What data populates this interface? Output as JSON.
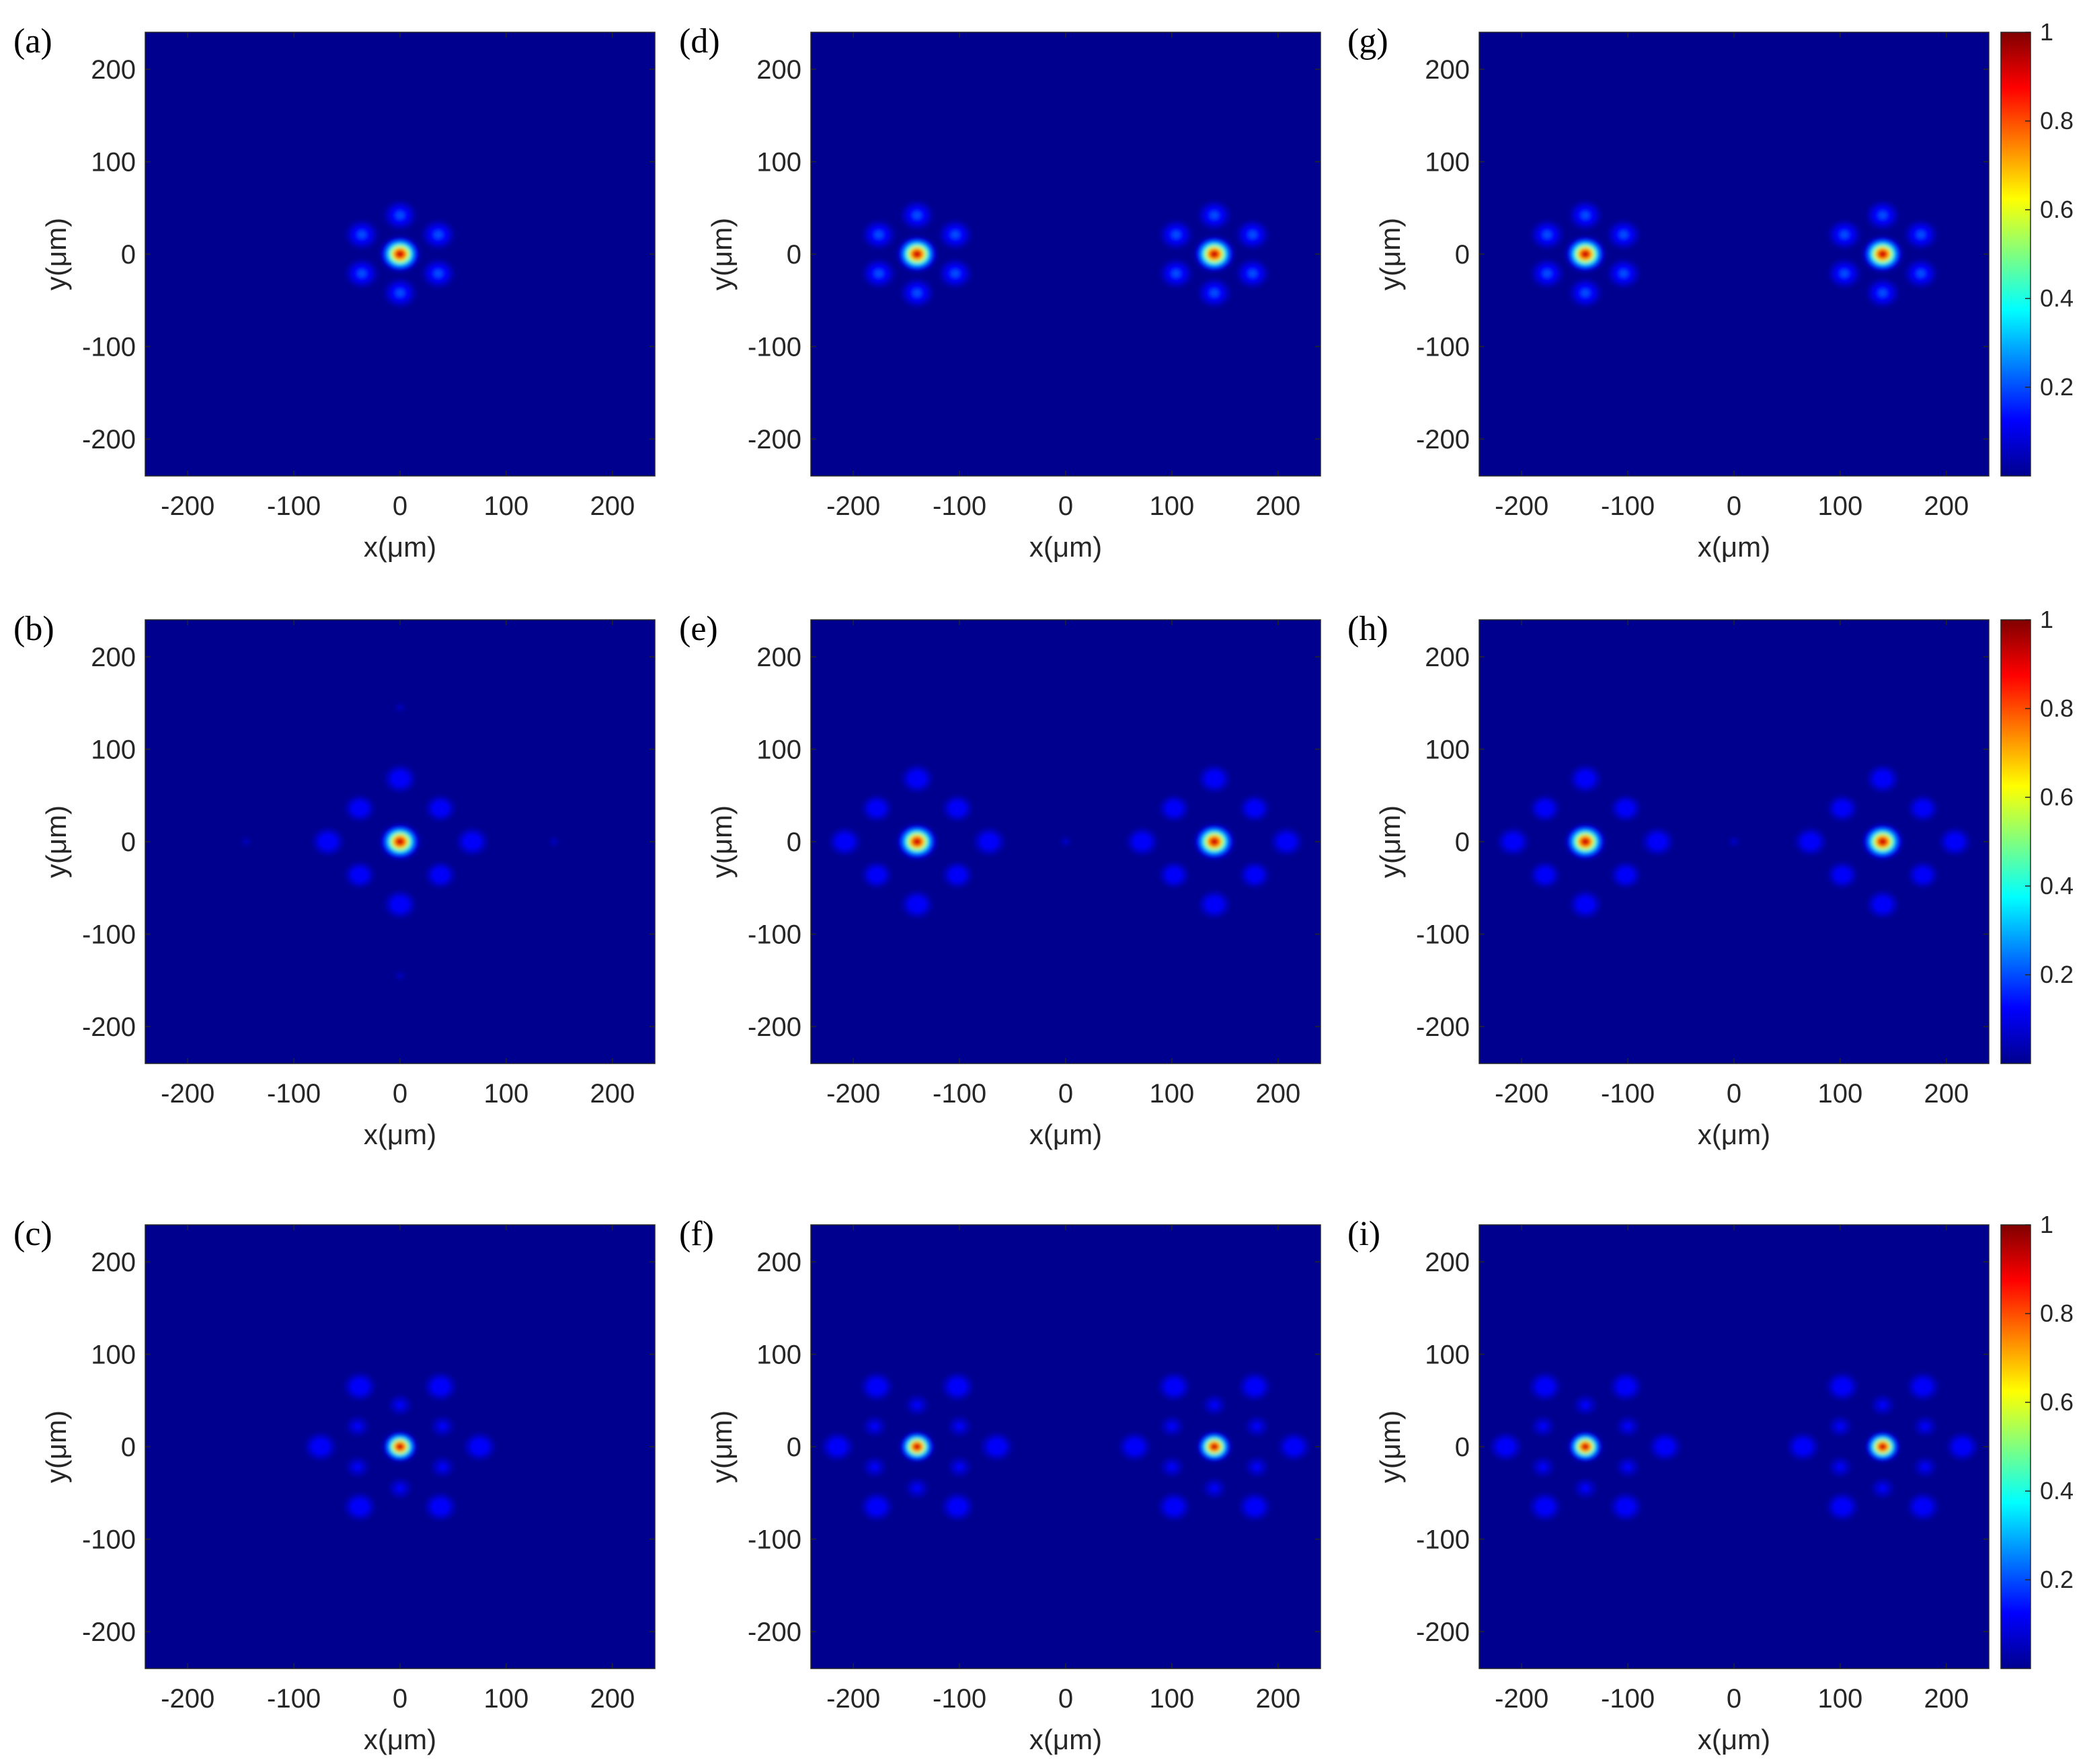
{
  "chart_data": {
    "type": "heatmap",
    "colormap": "jet",
    "background_color": "#00008f",
    "xlim": [
      -240,
      240
    ],
    "ylim": [
      -240,
      240
    ],
    "x_ticks": [
      "-200",
      "-100",
      "0",
      "100",
      "200"
    ],
    "y_ticks": [
      "200",
      "100",
      "0",
      "-100",
      "-200"
    ],
    "xlabel": "x(μm)",
    "ylabel": "y(μm)",
    "colorbar": {
      "range": [
        0,
        1
      ],
      "ticks": [
        "1",
        "0.8",
        "0.6",
        "0.4",
        "0.2"
      ],
      "rows": [
        0,
        1,
        2
      ]
    },
    "panels": [
      {
        "label": "(a)",
        "spots": [
          {
            "x": 0,
            "y": 0,
            "intensity": 1,
            "sigma": 7.5
          },
          {
            "x": 0,
            "y": 42,
            "intensity": 0.22,
            "sigma": 8.5
          },
          {
            "x": 0,
            "y": -42,
            "intensity": 0.22,
            "sigma": 8.5
          },
          {
            "x": 36,
            "y": 21,
            "intensity": 0.22,
            "sigma": 8.5
          },
          {
            "x": 36,
            "y": -21,
            "intensity": 0.22,
            "sigma": 8.5
          },
          {
            "x": -36,
            "y": 21,
            "intensity": 0.22,
            "sigma": 8.5
          },
          {
            "x": -36,
            "y": -21,
            "intensity": 0.22,
            "sigma": 8.5
          }
        ]
      },
      {
        "label": "(b)",
        "spots": [
          {
            "x": 0,
            "y": 0,
            "intensity": 1,
            "sigma": 7.5
          },
          {
            "x": 0,
            "y": 68,
            "intensity": 0.2,
            "sigma": 8.5
          },
          {
            "x": 0,
            "y": -68,
            "intensity": 0.2,
            "sigma": 8.5
          },
          {
            "x": 68,
            "y": 0,
            "intensity": 0.2,
            "sigma": 8.5
          },
          {
            "x": -68,
            "y": 0,
            "intensity": 0.2,
            "sigma": 8.5
          },
          {
            "x": 38,
            "y": 36,
            "intensity": 0.2,
            "sigma": 8
          },
          {
            "x": 38,
            "y": -36,
            "intensity": 0.2,
            "sigma": 8
          },
          {
            "x": -38,
            "y": 36,
            "intensity": 0.2,
            "sigma": 8
          },
          {
            "x": -38,
            "y": -36,
            "intensity": 0.2,
            "sigma": 8
          },
          {
            "x": 0,
            "y": 145,
            "intensity": 0.07,
            "sigma": 6
          },
          {
            "x": 0,
            "y": -145,
            "intensity": 0.07,
            "sigma": 6
          },
          {
            "x": 145,
            "y": 0,
            "intensity": 0.07,
            "sigma": 6
          },
          {
            "x": -145,
            "y": 0,
            "intensity": 0.07,
            "sigma": 6
          }
        ]
      },
      {
        "label": "(c)",
        "spots": [
          {
            "x": 0,
            "y": 0,
            "intensity": 1,
            "sigma": 6.5
          },
          {
            "x": 38,
            "y": 65,
            "intensity": 0.2,
            "sigma": 8.5
          },
          {
            "x": -38,
            "y": 65,
            "intensity": 0.2,
            "sigma": 8.5
          },
          {
            "x": 38,
            "y": -65,
            "intensity": 0.2,
            "sigma": 8.5
          },
          {
            "x": -38,
            "y": -65,
            "intensity": 0.2,
            "sigma": 8.5
          },
          {
            "x": 75,
            "y": 0,
            "intensity": 0.2,
            "sigma": 8.5
          },
          {
            "x": -75,
            "y": 0,
            "intensity": 0.2,
            "sigma": 8.5
          },
          {
            "x": 0,
            "y": 45,
            "intensity": 0.14,
            "sigma": 7
          },
          {
            "x": 0,
            "y": -45,
            "intensity": 0.14,
            "sigma": 7
          },
          {
            "x": 40,
            "y": 22,
            "intensity": 0.14,
            "sigma": 7
          },
          {
            "x": 40,
            "y": -22,
            "intensity": 0.14,
            "sigma": 7
          },
          {
            "x": -40,
            "y": 22,
            "intensity": 0.14,
            "sigma": 7
          },
          {
            "x": -40,
            "y": -22,
            "intensity": 0.14,
            "sigma": 7
          }
        ]
      },
      {
        "label": "(d)",
        "spots": [
          {
            "x": -140,
            "y": 0,
            "intensity": 1,
            "sigma": 7.5
          },
          {
            "x": -140,
            "y": 42,
            "intensity": 0.22,
            "sigma": 8.5
          },
          {
            "x": -140,
            "y": -42,
            "intensity": 0.22,
            "sigma": 8.5
          },
          {
            "x": -104,
            "y": 21,
            "intensity": 0.22,
            "sigma": 8.5
          },
          {
            "x": -104,
            "y": -21,
            "intensity": 0.22,
            "sigma": 8.5
          },
          {
            "x": -176,
            "y": 21,
            "intensity": 0.22,
            "sigma": 8.5
          },
          {
            "x": -176,
            "y": -21,
            "intensity": 0.22,
            "sigma": 8.5
          },
          {
            "x": 140,
            "y": 0,
            "intensity": 1,
            "sigma": 7.5
          },
          {
            "x": 140,
            "y": 42,
            "intensity": 0.22,
            "sigma": 8.5
          },
          {
            "x": 140,
            "y": -42,
            "intensity": 0.22,
            "sigma": 8.5
          },
          {
            "x": 176,
            "y": 21,
            "intensity": 0.22,
            "sigma": 8.5
          },
          {
            "x": 176,
            "y": -21,
            "intensity": 0.22,
            "sigma": 8.5
          },
          {
            "x": 104,
            "y": 21,
            "intensity": 0.22,
            "sigma": 8.5
          },
          {
            "x": 104,
            "y": -21,
            "intensity": 0.22,
            "sigma": 8.5
          }
        ]
      },
      {
        "label": "(e)",
        "spots": [
          {
            "x": -140,
            "y": 0,
            "intensity": 1,
            "sigma": 7.5
          },
          {
            "x": -140,
            "y": 68,
            "intensity": 0.2,
            "sigma": 8.5
          },
          {
            "x": -140,
            "y": -68,
            "intensity": 0.2,
            "sigma": 8.5
          },
          {
            "x": -72,
            "y": 0,
            "intensity": 0.2,
            "sigma": 8.5
          },
          {
            "x": -208,
            "y": 0,
            "intensity": 0.2,
            "sigma": 8.5
          },
          {
            "x": -102,
            "y": 36,
            "intensity": 0.2,
            "sigma": 8
          },
          {
            "x": -102,
            "y": -36,
            "intensity": 0.2,
            "sigma": 8
          },
          {
            "x": -178,
            "y": 36,
            "intensity": 0.2,
            "sigma": 8
          },
          {
            "x": -178,
            "y": -36,
            "intensity": 0.2,
            "sigma": 8
          },
          {
            "x": 140,
            "y": 0,
            "intensity": 1,
            "sigma": 7.5
          },
          {
            "x": 140,
            "y": 68,
            "intensity": 0.2,
            "sigma": 8.5
          },
          {
            "x": 140,
            "y": -68,
            "intensity": 0.2,
            "sigma": 8.5
          },
          {
            "x": 208,
            "y": 0,
            "intensity": 0.2,
            "sigma": 8.5
          },
          {
            "x": 72,
            "y": 0,
            "intensity": 0.2,
            "sigma": 8.5
          },
          {
            "x": 178,
            "y": 36,
            "intensity": 0.2,
            "sigma": 8
          },
          {
            "x": 178,
            "y": -36,
            "intensity": 0.2,
            "sigma": 8
          },
          {
            "x": 102,
            "y": 36,
            "intensity": 0.2,
            "sigma": 8
          },
          {
            "x": 102,
            "y": -36,
            "intensity": 0.2,
            "sigma": 8
          },
          {
            "x": 0,
            "y": 0,
            "intensity": 0.07,
            "sigma": 7
          }
        ]
      },
      {
        "label": "(f)",
        "spots": [
          {
            "x": -140,
            "y": 0,
            "intensity": 1,
            "sigma": 6.5
          },
          {
            "x": -102,
            "y": 65,
            "intensity": 0.2,
            "sigma": 8.5
          },
          {
            "x": -178,
            "y": 65,
            "intensity": 0.2,
            "sigma": 8.5
          },
          {
            "x": -102,
            "y": -65,
            "intensity": 0.2,
            "sigma": 8.5
          },
          {
            "x": -178,
            "y": -65,
            "intensity": 0.2,
            "sigma": 8.5
          },
          {
            "x": -65,
            "y": 0,
            "intensity": 0.2,
            "sigma": 8.5
          },
          {
            "x": -215,
            "y": 0,
            "intensity": 0.2,
            "sigma": 8.5
          },
          {
            "x": -140,
            "y": 45,
            "intensity": 0.14,
            "sigma": 7
          },
          {
            "x": -140,
            "y": -45,
            "intensity": 0.14,
            "sigma": 7
          },
          {
            "x": -100,
            "y": 22,
            "intensity": 0.14,
            "sigma": 7
          },
          {
            "x": -100,
            "y": -22,
            "intensity": 0.14,
            "sigma": 7
          },
          {
            "x": -180,
            "y": 22,
            "intensity": 0.14,
            "sigma": 7
          },
          {
            "x": -180,
            "y": -22,
            "intensity": 0.14,
            "sigma": 7
          },
          {
            "x": 140,
            "y": 0,
            "intensity": 1,
            "sigma": 6.5
          },
          {
            "x": 178,
            "y": 65,
            "intensity": 0.2,
            "sigma": 8.5
          },
          {
            "x": 102,
            "y": 65,
            "intensity": 0.2,
            "sigma": 8.5
          },
          {
            "x": 178,
            "y": -65,
            "intensity": 0.2,
            "sigma": 8.5
          },
          {
            "x": 102,
            "y": -65,
            "intensity": 0.2,
            "sigma": 8.5
          },
          {
            "x": 215,
            "y": 0,
            "intensity": 0.2,
            "sigma": 8.5
          },
          {
            "x": 65,
            "y": 0,
            "intensity": 0.2,
            "sigma": 8.5
          },
          {
            "x": 140,
            "y": 45,
            "intensity": 0.14,
            "sigma": 7
          },
          {
            "x": 140,
            "y": -45,
            "intensity": 0.14,
            "sigma": 7
          },
          {
            "x": 180,
            "y": 22,
            "intensity": 0.14,
            "sigma": 7
          },
          {
            "x": 180,
            "y": -22,
            "intensity": 0.14,
            "sigma": 7
          },
          {
            "x": 100,
            "y": 22,
            "intensity": 0.14,
            "sigma": 7
          },
          {
            "x": 100,
            "y": -22,
            "intensity": 0.14,
            "sigma": 7
          }
        ]
      },
      {
        "label": "(g)",
        "spots": [
          {
            "x": -140,
            "y": 0,
            "intensity": 1,
            "sigma": 7.5
          },
          {
            "x": -140,
            "y": 42,
            "intensity": 0.22,
            "sigma": 8.5
          },
          {
            "x": -140,
            "y": -42,
            "intensity": 0.22,
            "sigma": 8.5
          },
          {
            "x": -104,
            "y": 21,
            "intensity": 0.22,
            "sigma": 8.5
          },
          {
            "x": -104,
            "y": -21,
            "intensity": 0.22,
            "sigma": 8.5
          },
          {
            "x": -176,
            "y": 21,
            "intensity": 0.22,
            "sigma": 8.5
          },
          {
            "x": -176,
            "y": -21,
            "intensity": 0.22,
            "sigma": 8.5
          },
          {
            "x": 140,
            "y": 0,
            "intensity": 1,
            "sigma": 7.5
          },
          {
            "x": 140,
            "y": 42,
            "intensity": 0.22,
            "sigma": 8.5
          },
          {
            "x": 140,
            "y": -42,
            "intensity": 0.22,
            "sigma": 8.5
          },
          {
            "x": 176,
            "y": 21,
            "intensity": 0.22,
            "sigma": 8.5
          },
          {
            "x": 176,
            "y": -21,
            "intensity": 0.22,
            "sigma": 8.5
          },
          {
            "x": 104,
            "y": 21,
            "intensity": 0.22,
            "sigma": 8.5
          },
          {
            "x": 104,
            "y": -21,
            "intensity": 0.22,
            "sigma": 8.5
          }
        ]
      },
      {
        "label": "(h)",
        "spots": [
          {
            "x": -140,
            "y": 0,
            "intensity": 1,
            "sigma": 7.5
          },
          {
            "x": -140,
            "y": 68,
            "intensity": 0.2,
            "sigma": 8.5
          },
          {
            "x": -140,
            "y": -68,
            "intensity": 0.2,
            "sigma": 8.5
          },
          {
            "x": -72,
            "y": 0,
            "intensity": 0.2,
            "sigma": 8.5
          },
          {
            "x": -208,
            "y": 0,
            "intensity": 0.2,
            "sigma": 8.5
          },
          {
            "x": -102,
            "y": 36,
            "intensity": 0.2,
            "sigma": 8
          },
          {
            "x": -102,
            "y": -36,
            "intensity": 0.2,
            "sigma": 8
          },
          {
            "x": -178,
            "y": 36,
            "intensity": 0.2,
            "sigma": 8
          },
          {
            "x": -178,
            "y": -36,
            "intensity": 0.2,
            "sigma": 8
          },
          {
            "x": 140,
            "y": 0,
            "intensity": 1,
            "sigma": 7.5
          },
          {
            "x": 140,
            "y": 68,
            "intensity": 0.2,
            "sigma": 8.5
          },
          {
            "x": 140,
            "y": -68,
            "intensity": 0.2,
            "sigma": 8.5
          },
          {
            "x": 208,
            "y": 0,
            "intensity": 0.2,
            "sigma": 8.5
          },
          {
            "x": 72,
            "y": 0,
            "intensity": 0.2,
            "sigma": 8.5
          },
          {
            "x": 178,
            "y": 36,
            "intensity": 0.2,
            "sigma": 8
          },
          {
            "x": 178,
            "y": -36,
            "intensity": 0.2,
            "sigma": 8
          },
          {
            "x": 102,
            "y": 36,
            "intensity": 0.2,
            "sigma": 8
          },
          {
            "x": 102,
            "y": -36,
            "intensity": 0.2,
            "sigma": 8
          },
          {
            "x": 0,
            "y": 0,
            "intensity": 0.07,
            "sigma": 7
          }
        ]
      },
      {
        "label": "(i)",
        "spots": [
          {
            "x": -140,
            "y": 0,
            "intensity": 1,
            "sigma": 6.5
          },
          {
            "x": -102,
            "y": 65,
            "intensity": 0.2,
            "sigma": 8.5
          },
          {
            "x": -178,
            "y": 65,
            "intensity": 0.2,
            "sigma": 8.5
          },
          {
            "x": -102,
            "y": -65,
            "intensity": 0.2,
            "sigma": 8.5
          },
          {
            "x": -178,
            "y": -65,
            "intensity": 0.2,
            "sigma": 8.5
          },
          {
            "x": -65,
            "y": 0,
            "intensity": 0.2,
            "sigma": 8.5
          },
          {
            "x": -215,
            "y": 0,
            "intensity": 0.2,
            "sigma": 8.5
          },
          {
            "x": -140,
            "y": 45,
            "intensity": 0.14,
            "sigma": 7
          },
          {
            "x": -140,
            "y": -45,
            "intensity": 0.14,
            "sigma": 7
          },
          {
            "x": -100,
            "y": 22,
            "intensity": 0.14,
            "sigma": 7
          },
          {
            "x": -100,
            "y": -22,
            "intensity": 0.14,
            "sigma": 7
          },
          {
            "x": -180,
            "y": 22,
            "intensity": 0.14,
            "sigma": 7
          },
          {
            "x": -180,
            "y": -22,
            "intensity": 0.14,
            "sigma": 7
          },
          {
            "x": 140,
            "y": 0,
            "intensity": 1,
            "sigma": 6.5
          },
          {
            "x": 178,
            "y": 65,
            "intensity": 0.2,
            "sigma": 8.5
          },
          {
            "x": 102,
            "y": 65,
            "intensity": 0.2,
            "sigma": 8.5
          },
          {
            "x": 178,
            "y": -65,
            "intensity": 0.2,
            "sigma": 8.5
          },
          {
            "x": 102,
            "y": -65,
            "intensity": 0.2,
            "sigma": 8.5
          },
          {
            "x": 215,
            "y": 0,
            "intensity": 0.2,
            "sigma": 8.5
          },
          {
            "x": 65,
            "y": 0,
            "intensity": 0.2,
            "sigma": 8.5
          },
          {
            "x": 140,
            "y": 45,
            "intensity": 0.14,
            "sigma": 7
          },
          {
            "x": 140,
            "y": -45,
            "intensity": 0.14,
            "sigma": 7
          },
          {
            "x": 180,
            "y": 22,
            "intensity": 0.14,
            "sigma": 7
          },
          {
            "x": 180,
            "y": -22,
            "intensity": 0.14,
            "sigma": 7
          },
          {
            "x": 100,
            "y": 22,
            "intensity": 0.14,
            "sigma": 7
          },
          {
            "x": 100,
            "y": -22,
            "intensity": 0.14,
            "sigma": 7
          }
        ]
      }
    ]
  }
}
